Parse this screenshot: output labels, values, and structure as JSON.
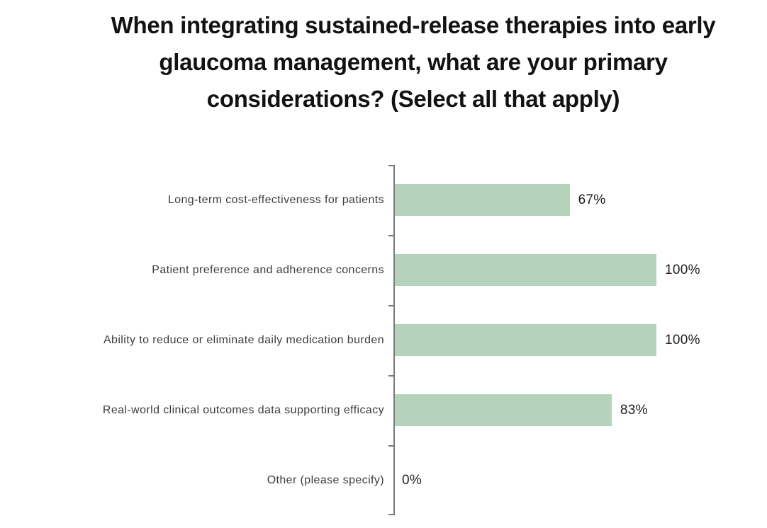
{
  "page": {
    "background": "#ffffff"
  },
  "chart_data": {
    "type": "bar",
    "orientation": "horizontal",
    "title": "When integrating sustained-release therapies into early glaucoma management, what are your primary considerations? (Select all that apply)",
    "title_lines": [
      "When integrating sustained-release therapies into early",
      "glaucoma management, what are your primary",
      "considerations? (Select all that apply)"
    ],
    "categories": [
      "Long-term cost-effectiveness for patients",
      "Patient preference and adherence concerns",
      "Ability to reduce or eliminate daily medication burden",
      "Real-world clinical outcomes data supporting efficacy",
      "Other (please specify)"
    ],
    "values": [
      67,
      100,
      100,
      83,
      0
    ],
    "value_labels": [
      "67%",
      "100%",
      "100%",
      "83%",
      "0%"
    ],
    "xlabel": "",
    "ylabel": "",
    "xlim": [
      0,
      100
    ],
    "grid": false,
    "legend": false,
    "bar_color": "#b5d3ba",
    "axis_color": "#7a7a7a",
    "category_label_color": "#3d3d3d",
    "value_label_color": "#1f1f1f",
    "title_color": "#121212"
  }
}
